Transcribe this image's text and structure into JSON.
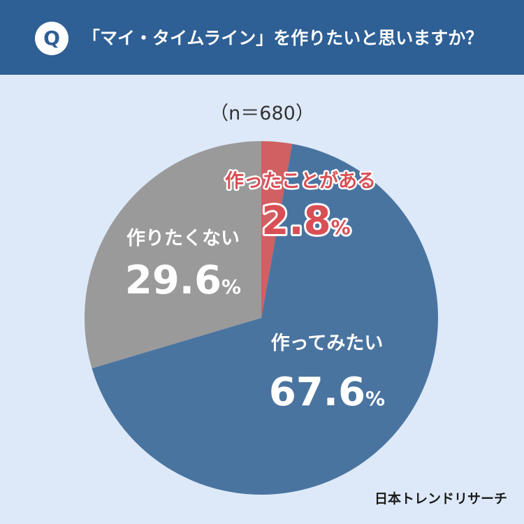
{
  "header": {
    "badge": "Q",
    "question": "「マイ・タイムライン」を作りたいと思いますか？"
  },
  "sample_size": "（n＝680）",
  "brand": "日本トレンドリサーチ",
  "colors": {
    "header_bg": "#2e5f95",
    "page_bg": "#dde9f8",
    "made": "#d06062",
    "want": "#4a74a0",
    "dont": "#9a9a9a"
  },
  "chart_data": {
    "type": "pie",
    "slices": [
      {
        "label": "作ったことがある",
        "value": 2.8,
        "display": "2.8",
        "color": "#d06062",
        "label_color": "#d94f55"
      },
      {
        "label": "作ってみたい",
        "value": 67.6,
        "display": "67.6",
        "color": "#4a74a0",
        "label_color": "#ffffff"
      },
      {
        "label": "作りたくない",
        "value": 29.6,
        "display": "29.6",
        "color": "#9a9a9a",
        "label_color": "#ffffff"
      }
    ],
    "unit": "%",
    "start": "12 o'clock",
    "direction": "clockwise"
  }
}
